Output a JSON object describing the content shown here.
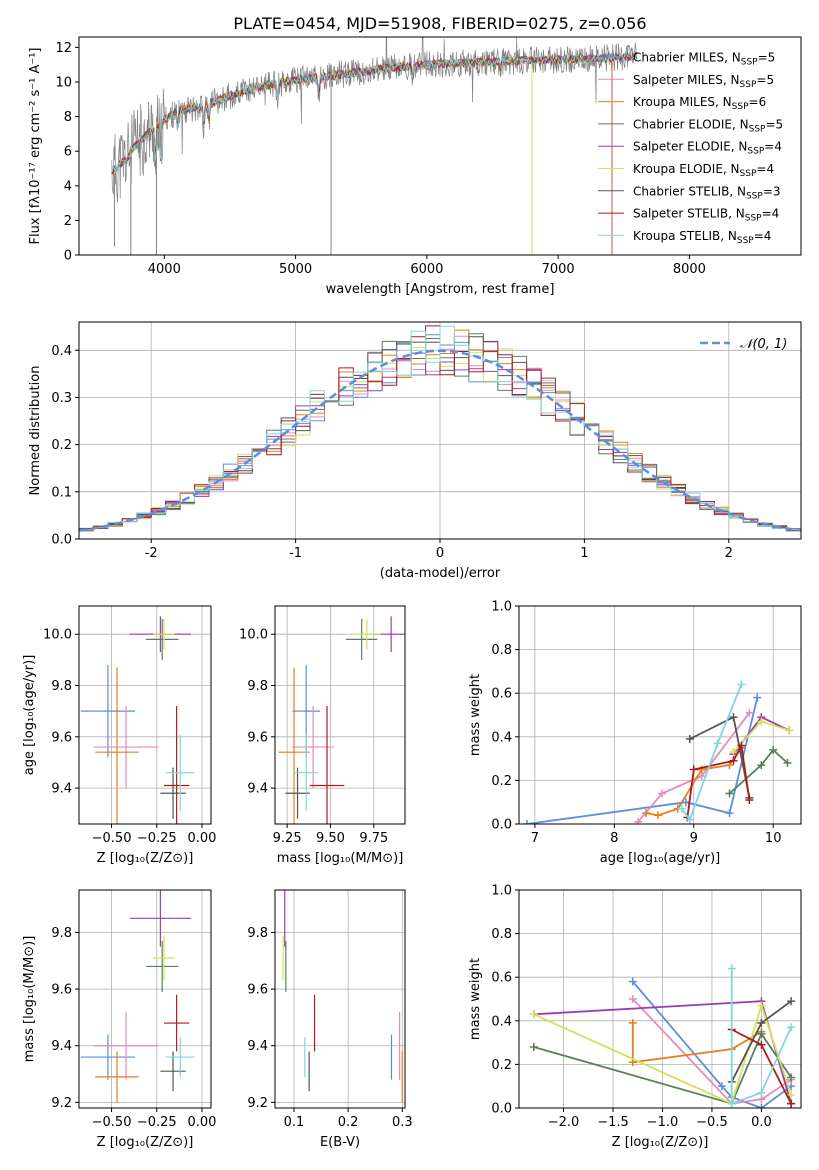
{
  "figure": {
    "title": "PLATE=0454, MJD=51908, FIBERID=0275, z=0.056"
  },
  "colors": {
    "Chabrier MILES": "#5b8ee3",
    "Salpeter MILES": "#e58ac0",
    "Kroupa MILES": "#e67e22",
    "Chabrier ELODIE": "#5a7f5a",
    "Salpeter ELODIE": "#9b3db5",
    "Kroupa ELODIE": "#d4e157",
    "Chabrier STELIB": "#555555",
    "Salpeter STELIB": "#a61e1e",
    "Kroupa STELIB": "#7fd7de",
    "data": "#808080",
    "normal": "#5b8ee3"
  },
  "chart_data": [
    {
      "id": "spectrum",
      "type": "line",
      "xlabel": "wavelength [Angstrom, rest frame]",
      "ylabel": "Flux [fλ10⁻¹⁷ erg cm⁻² s⁻¹ A⁻¹]",
      "xlim": [
        3350,
        8850
      ],
      "ylim": [
        0,
        12.6
      ],
      "xticks": [
        4000,
        5000,
        6000,
        7000,
        8000
      ],
      "yticks": [
        0,
        2,
        4,
        6,
        8,
        10,
        12
      ],
      "legend_position": "right",
      "legend": [
        {
          "name": "Chabrier MILES",
          "n": "5"
        },
        {
          "name": "Salpeter MILES",
          "n": "5"
        },
        {
          "name": "Kroupa MILES",
          "n": "6"
        },
        {
          "name": "Chabrier ELODIE",
          "n": "5"
        },
        {
          "name": "Salpeter ELODIE",
          "n": "4"
        },
        {
          "name": "Kroupa ELODIE",
          "n": "4"
        },
        {
          "name": "Chabrier STELIB",
          "n": "3"
        },
        {
          "name": "Salpeter STELIB",
          "n": "4"
        },
        {
          "name": "Kroupa STELIB",
          "n": "4"
        }
      ],
      "continuum": {
        "x": [
          3600,
          3700,
          3800,
          3900,
          4000,
          4100,
          4200,
          4300,
          4400,
          4500,
          4700,
          5000,
          5300,
          5600,
          6000,
          6300,
          6600,
          7000,
          7200,
          7400,
          7600
        ],
        "y": [
          4.8,
          5.5,
          6.5,
          7.2,
          7.8,
          8.3,
          8.5,
          8.6,
          8.9,
          9.2,
          9.7,
          10.1,
          10.4,
          10.7,
          11.0,
          11.1,
          11.2,
          11.3,
          11.3,
          11.4,
          11.5
        ]
      }
    },
    {
      "id": "residuals",
      "type": "line",
      "xlabel": "(data-model)/error",
      "ylabel": "Normed distribution",
      "xlim": [
        -2.5,
        2.5
      ],
      "ylim": [
        0,
        0.46
      ],
      "xticks": [
        -2,
        -1,
        0,
        1,
        2
      ],
      "yticks": [
        0.0,
        0.1,
        0.2,
        0.3,
        0.4
      ],
      "legend_position": "top-right",
      "normal_label": "𝒩(0, 1)"
    },
    {
      "id": "age_vs_Z",
      "type": "scatter",
      "xlabel": "Z [log₁₀(Z/Z⊙)]",
      "ylabel": "age [log₁₀(age/yr)]",
      "xlim": [
        -0.68,
        0.05
      ],
      "ylim": [
        9.26,
        10.11
      ],
      "xticks": [
        -0.5,
        -0.25,
        0.0
      ],
      "xticklabels": [
        "−0.50",
        "−0.25",
        "0.00"
      ],
      "yticks": [
        9.4,
        9.6,
        9.8,
        10.0
      ],
      "points": [
        {
          "model": "Chabrier MILES",
          "x": -0.52,
          "xerr": 0.15,
          "y": 9.7,
          "yerr": 0.18
        },
        {
          "model": "Salpeter MILES",
          "x": -0.42,
          "xerr": 0.18,
          "y": 9.56,
          "yerr": 0.16
        },
        {
          "model": "Kroupa MILES",
          "x": -0.47,
          "xerr": 0.12,
          "y": 9.54,
          "yerr": 0.33
        },
        {
          "model": "Chabrier ELODIE",
          "x": -0.22,
          "xerr": 0.09,
          "y": 9.98,
          "yerr": 0.08
        },
        {
          "model": "Salpeter ELODIE",
          "x": -0.23,
          "xerr": 0.17,
          "y": 10.0,
          "yerr": 0.07
        },
        {
          "model": "Kroupa ELODIE",
          "x": -0.21,
          "xerr": 0.06,
          "y": 10.0,
          "yerr": 0.06
        },
        {
          "model": "Chabrier STELIB",
          "x": -0.16,
          "xerr": 0.07,
          "y": 9.38,
          "yerr": 0.1
        },
        {
          "model": "Salpeter STELIB",
          "x": -0.14,
          "xerr": 0.07,
          "y": 9.41,
          "yerr": 0.31
        },
        {
          "model": "Kroupa STELIB",
          "x": -0.12,
          "xerr": 0.08,
          "y": 9.46,
          "yerr": 0.15
        }
      ]
    },
    {
      "id": "age_vs_mass",
      "type": "scatter",
      "xlabel": "mass [log₁₀(M/M⊙)]",
      "ylabel": "",
      "xlim": [
        9.18,
        9.93
      ],
      "ylim": [
        9.26,
        10.11
      ],
      "xticks": [
        9.25,
        9.5,
        9.75
      ],
      "xticklabels": [
        "9.25",
        "9.50",
        "9.75"
      ],
      "yticks": [
        9.4,
        9.6,
        9.8,
        10.0
      ],
      "points": [
        {
          "model": "Chabrier MILES",
          "x": 9.36,
          "xerr": 0.08,
          "y": 9.7,
          "yerr": 0.18
        },
        {
          "model": "Salpeter MILES",
          "x": 9.4,
          "xerr": 0.12,
          "y": 9.56,
          "yerr": 0.16
        },
        {
          "model": "Kroupa MILES",
          "x": 9.29,
          "xerr": 0.09,
          "y": 9.54,
          "yerr": 0.33
        },
        {
          "model": "Chabrier ELODIE",
          "x": 9.68,
          "xerr": 0.09,
          "y": 9.98,
          "yerr": 0.08
        },
        {
          "model": "Salpeter ELODIE",
          "x": 9.85,
          "xerr": 0.1,
          "y": 10.0,
          "yerr": 0.07
        },
        {
          "model": "Kroupa ELODIE",
          "x": 9.71,
          "xerr": 0.08,
          "y": 10.0,
          "yerr": 0.06
        },
        {
          "model": "Chabrier STELIB",
          "x": 9.31,
          "xerr": 0.07,
          "y": 9.38,
          "yerr": 0.1
        },
        {
          "model": "Salpeter STELIB",
          "x": 9.48,
          "xerr": 0.1,
          "y": 9.41,
          "yerr": 0.31
        },
        {
          "model": "Kroupa STELIB",
          "x": 9.36,
          "xerr": 0.07,
          "y": 9.46,
          "yerr": 0.15
        }
      ]
    },
    {
      "id": "weight_vs_age",
      "type": "line",
      "xlabel": "age [log₁₀(age/yr)]",
      "ylabel": "mass weight",
      "xlim": [
        6.8,
        10.35
      ],
      "ylim": [
        0,
        1.0
      ],
      "xticks": [
        7,
        8,
        9,
        10
      ],
      "yticks": [
        0.0,
        0.2,
        0.4,
        0.6,
        0.8,
        1.0
      ],
      "series": [
        {
          "model": "Chabrier MILES",
          "x": [
            6.9,
            8.9,
            9.45,
            9.8
          ],
          "y": [
            0.0,
            0.1,
            0.05,
            0.58
          ]
        },
        {
          "model": "Salpeter MILES",
          "x": [
            8.3,
            8.6,
            9.1,
            9.7
          ],
          "y": [
            0.01,
            0.14,
            0.22,
            0.51
          ]
        },
        {
          "model": "Kroupa MILES",
          "x": [
            8.4,
            8.55,
            8.8,
            9.1,
            9.45,
            9.6
          ],
          "y": [
            0.05,
            0.04,
            0.07,
            0.25,
            0.27,
            0.35
          ]
        },
        {
          "model": "Chabrier ELODIE",
          "x": [
            9.45,
            9.85,
            10.0,
            10.18
          ],
          "y": [
            0.14,
            0.27,
            0.34,
            0.28
          ]
        },
        {
          "model": "Salpeter ELODIE",
          "x": [
            9.5,
            9.85,
            10.2
          ],
          "y": [
            0.32,
            0.49,
            0.43
          ]
        },
        {
          "model": "Kroupa ELODIE",
          "x": [
            9.5,
            9.85,
            10.2
          ],
          "y": [
            0.33,
            0.47,
            0.43
          ]
        },
        {
          "model": "Chabrier STELIB",
          "x": [
            8.95,
            9.5,
            9.7
          ],
          "y": [
            0.39,
            0.49,
            0.12
          ]
        },
        {
          "model": "Salpeter STELIB",
          "x": [
            8.92,
            9.0,
            9.5,
            9.6,
            9.7
          ],
          "y": [
            0.03,
            0.25,
            0.29,
            0.36,
            0.11
          ]
        },
        {
          "model": "Kroupa STELIB",
          "x": [
            8.85,
            8.95,
            9.3,
            9.6
          ],
          "y": [
            0.07,
            0.02,
            0.37,
            0.64
          ]
        }
      ]
    },
    {
      "id": "mass_vs_Z",
      "type": "scatter",
      "xlabel": "Z [log₁₀(Z/Z⊙)]",
      "ylabel": "mass [log₁₀(M/M⊙)]",
      "xlim": [
        -0.68,
        0.05
      ],
      "ylim": [
        9.18,
        9.95
      ],
      "xticks": [
        -0.5,
        -0.25,
        0.0
      ],
      "xticklabels": [
        "−0.50",
        "−0.25",
        "0.00"
      ],
      "yticks": [
        9.2,
        9.4,
        9.6,
        9.8
      ],
      "points": [
        {
          "model": "Chabrier MILES",
          "x": -0.52,
          "xerr": 0.15,
          "y": 9.36,
          "yerr": 0.08
        },
        {
          "model": "Salpeter MILES",
          "x": -0.42,
          "xerr": 0.18,
          "y": 9.4,
          "yerr": 0.12
        },
        {
          "model": "Kroupa MILES",
          "x": -0.47,
          "xerr": 0.12,
          "y": 9.29,
          "yerr": 0.09
        },
        {
          "model": "Chabrier ELODIE",
          "x": -0.22,
          "xerr": 0.09,
          "y": 9.68,
          "yerr": 0.09
        },
        {
          "model": "Salpeter ELODIE",
          "x": -0.23,
          "xerr": 0.17,
          "y": 9.85,
          "yerr": 0.1
        },
        {
          "model": "Kroupa ELODIE",
          "x": -0.21,
          "xerr": 0.06,
          "y": 9.71,
          "yerr": 0.08
        },
        {
          "model": "Chabrier STELIB",
          "x": -0.16,
          "xerr": 0.07,
          "y": 9.31,
          "yerr": 0.07
        },
        {
          "model": "Salpeter STELIB",
          "x": -0.14,
          "xerr": 0.07,
          "y": 9.48,
          "yerr": 0.1
        },
        {
          "model": "Kroupa STELIB",
          "x": -0.12,
          "xerr": 0.08,
          "y": 9.36,
          "yerr": 0.07
        }
      ]
    },
    {
      "id": "mass_vs_ebv",
      "type": "scatter",
      "xlabel": "E(B-V)",
      "ylabel": "",
      "xlim": [
        0.065,
        0.305
      ],
      "ylim": [
        9.18,
        9.95
      ],
      "xticks": [
        0.1,
        0.2,
        0.3
      ],
      "xticklabels": [
        "0.1",
        "0.2",
        "0.3"
      ],
      "yticks": [
        9.2,
        9.4,
        9.6,
        9.8
      ],
      "points": [
        {
          "model": "Chabrier MILES",
          "x": 0.28,
          "y": 9.36,
          "yerr": 0.08
        },
        {
          "model": "Salpeter MILES",
          "x": 0.295,
          "y": 9.4,
          "yerr": 0.12
        },
        {
          "model": "Kroupa MILES",
          "x": 0.3,
          "y": 9.29,
          "yerr": 0.09
        },
        {
          "model": "Chabrier ELODIE",
          "x": 0.085,
          "y": 9.68,
          "yerr": 0.09
        },
        {
          "model": "Salpeter ELODIE",
          "x": 0.083,
          "y": 9.85,
          "yerr": 0.1
        },
        {
          "model": "Kroupa ELODIE",
          "x": 0.08,
          "y": 9.71,
          "yerr": 0.08
        },
        {
          "model": "Chabrier STELIB",
          "x": 0.128,
          "y": 9.31,
          "yerr": 0.07
        },
        {
          "model": "Salpeter STELIB",
          "x": 0.138,
          "y": 9.48,
          "yerr": 0.1
        },
        {
          "model": "Kroupa STELIB",
          "x": 0.12,
          "y": 9.36,
          "yerr": 0.07
        }
      ]
    },
    {
      "id": "weight_vs_Z",
      "type": "line",
      "xlabel": "Z [log₁₀(Z/Z⊙)]",
      "ylabel": "mass weight",
      "xlim": [
        -2.45,
        0.4
      ],
      "ylim": [
        0,
        1.0
      ],
      "xticks": [
        -2.0,
        -1.5,
        -1.0,
        -0.5,
        0.0
      ],
      "xticklabels": [
        "−2.0",
        "−1.5",
        "−1.0",
        "−0.5",
        "0.0"
      ],
      "yticks": [
        0.0,
        0.2,
        0.4,
        0.6,
        0.8,
        1.0
      ],
      "series": [
        {
          "model": "Chabrier MILES",
          "x": [
            -1.3,
            -0.4,
            -0.3,
            0.0,
            0.3
          ],
          "y": [
            0.58,
            0.1,
            0.05,
            0.0,
            0.1
          ]
        },
        {
          "model": "Salpeter MILES",
          "x": [
            -1.3,
            -0.3,
            0.0,
            0.3
          ],
          "y": [
            0.5,
            0.02,
            0.04,
            0.13
          ]
        },
        {
          "model": "Kroupa MILES",
          "x": [
            -1.3,
            -1.3,
            -0.3,
            0.0
          ],
          "y": [
            0.39,
            0.21,
            0.27,
            0.35
          ]
        },
        {
          "model": "Chabrier ELODIE",
          "x": [
            -2.3,
            -0.3,
            0.0,
            0.3
          ],
          "y": [
            0.28,
            0.02,
            0.34,
            0.14
          ]
        },
        {
          "model": "Salpeter ELODIE",
          "x": [
            -2.3,
            0.0,
            0.3
          ],
          "y": [
            0.43,
            0.49,
            0.02
          ]
        },
        {
          "model": "Kroupa ELODIE",
          "x": [
            -2.3,
            -0.3,
            0.0,
            0.3
          ],
          "y": [
            0.43,
            0.02,
            0.47,
            0.06
          ]
        },
        {
          "model": "Chabrier STELIB",
          "x": [
            -0.3,
            0.0,
            0.3
          ],
          "y": [
            0.12,
            0.39,
            0.49
          ]
        },
        {
          "model": "Salpeter STELIB",
          "x": [
            -0.3,
            0.0,
            0.3
          ],
          "y": [
            0.36,
            0.29,
            0.02
          ]
        },
        {
          "model": "Kroupa STELIB",
          "x": [
            -0.3,
            -0.3,
            0.0,
            0.3
          ],
          "y": [
            0.64,
            0.02,
            0.07,
            0.37
          ]
        }
      ]
    }
  ]
}
